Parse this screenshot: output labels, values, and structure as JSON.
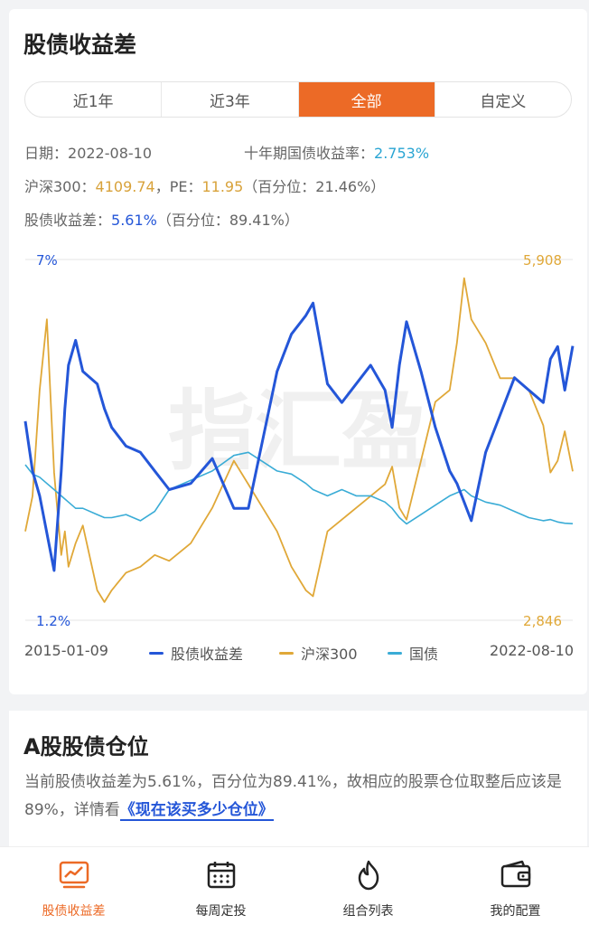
{
  "page_title": "股债收益差",
  "tabs": [
    {
      "label": "近1年",
      "active": false
    },
    {
      "label": "近3年",
      "active": false
    },
    {
      "label": "全部",
      "active": true
    },
    {
      "label": "自定义",
      "active": false
    }
  ],
  "info": {
    "date_label": "日期：",
    "date_value": "2022-08-10",
    "bond_label": "十年期国债收益率：",
    "bond_value": "2.753%",
    "index_label": "沪深300：",
    "index_value": "4109.74",
    "pe_label": "，PE：",
    "pe_value": "11.95",
    "pe_pct_text": "（百分位：21.46%）",
    "spread_label": "股债收益差：",
    "spread_value": "5.61%",
    "spread_pct_text": "（百分位：89.41%）"
  },
  "colors": {
    "spread": "#2456d8",
    "index": "#e0a838",
    "bond": "#3aacd6",
    "accent": "#ec6a26"
  },
  "chart_data": {
    "type": "line",
    "x_start": "2015-01-09",
    "x_end": "2022-08-10",
    "left_axis": {
      "min": 1.2,
      "max": 7,
      "min_label": "1.2%",
      "max_label": "7%"
    },
    "right_axis": {
      "min": 2846,
      "max": 5908,
      "min_label": "2,846",
      "max_label": "5,908"
    },
    "x": [
      2015.0,
      2015.1,
      2015.2,
      2015.3,
      2015.4,
      2015.5,
      2015.55,
      2015.6,
      2015.7,
      2015.8,
      2016.0,
      2016.1,
      2016.2,
      2016.4,
      2016.6,
      2016.8,
      2017.0,
      2017.3,
      2017.6,
      2017.9,
      2018.1,
      2018.3,
      2018.5,
      2018.7,
      2018.9,
      2019.0,
      2019.2,
      2019.4,
      2019.6,
      2019.8,
      2020.0,
      2020.1,
      2020.2,
      2020.3,
      2020.5,
      2020.7,
      2020.9,
      2021.0,
      2021.1,
      2021.2,
      2021.4,
      2021.6,
      2021.8,
      2022.0,
      2022.2,
      2022.3,
      2022.4,
      2022.5,
      2022.61
    ],
    "series": [
      {
        "name": "股债收益差",
        "axis": "left",
        "values": [
          4.4,
          3.6,
          3.2,
          2.6,
          2.0,
          3.6,
          4.6,
          5.3,
          5.7,
          5.2,
          5.0,
          4.6,
          4.3,
          4.0,
          3.9,
          3.6,
          3.3,
          3.4,
          3.8,
          3.0,
          3.0,
          4.1,
          5.2,
          5.8,
          6.1,
          6.3,
          5.0,
          4.7,
          5.0,
          5.3,
          4.9,
          4.3,
          5.3,
          6.0,
          5.2,
          4.3,
          3.6,
          3.4,
          3.1,
          2.8,
          3.9,
          4.5,
          5.1,
          4.9,
          4.7,
          5.4,
          5.6,
          4.9,
          5.61
        ]
      },
      {
        "name": "沪深300",
        "axis": "right",
        "values": [
          3600,
          3900,
          4800,
          5400,
          4100,
          3400,
          3600,
          3300,
          3500,
          3650,
          3100,
          3000,
          3100,
          3250,
          3300,
          3400,
          3350,
          3500,
          3800,
          4200,
          4000,
          3800,
          3600,
          3300,
          3100,
          3050,
          3600,
          3700,
          3800,
          3900,
          4000,
          4150,
          3800,
          3700,
          4200,
          4700,
          4800,
          5200,
          5750,
          5400,
          5200,
          4900,
          4900,
          4800,
          4500,
          4100,
          4200,
          4450,
          4109.74
        ]
      },
      {
        "name": "国债",
        "axis": "none",
        "values": [
          3.7,
          3.55,
          3.5,
          3.4,
          3.3,
          3.2,
          3.15,
          3.1,
          3.0,
          3.0,
          2.9,
          2.85,
          2.85,
          2.9,
          2.8,
          2.95,
          3.3,
          3.45,
          3.6,
          3.85,
          3.9,
          3.75,
          3.6,
          3.55,
          3.4,
          3.3,
          3.2,
          3.3,
          3.2,
          3.2,
          3.1,
          3.0,
          2.85,
          2.75,
          2.9,
          3.05,
          3.2,
          3.25,
          3.3,
          3.2,
          3.1,
          3.05,
          2.95,
          2.85,
          2.8,
          2.82,
          2.78,
          2.76,
          2.753
        ]
      }
    ]
  },
  "legend": {
    "start_date": "2015-01-09",
    "end_date": "2022-08-10",
    "items": [
      "股债收益差",
      "沪深300",
      "国债"
    ]
  },
  "watermark": "指汇盈",
  "position_section": {
    "title": "A股股债仓位",
    "text": "当前股债收益差为5.61%，百分位为89.41%，故相应的股票仓位取整后应该是89%，详情看",
    "link_text": "《现在该买多少仓位》"
  },
  "bottom_nav": [
    {
      "label": "股债收益差",
      "icon": "line-chart-icon",
      "active": true
    },
    {
      "label": "每周定投",
      "icon": "calendar-icon",
      "active": false
    },
    {
      "label": "组合列表",
      "icon": "flame-icon",
      "active": false
    },
    {
      "label": "我的配置",
      "icon": "wallet-icon",
      "active": false
    }
  ]
}
